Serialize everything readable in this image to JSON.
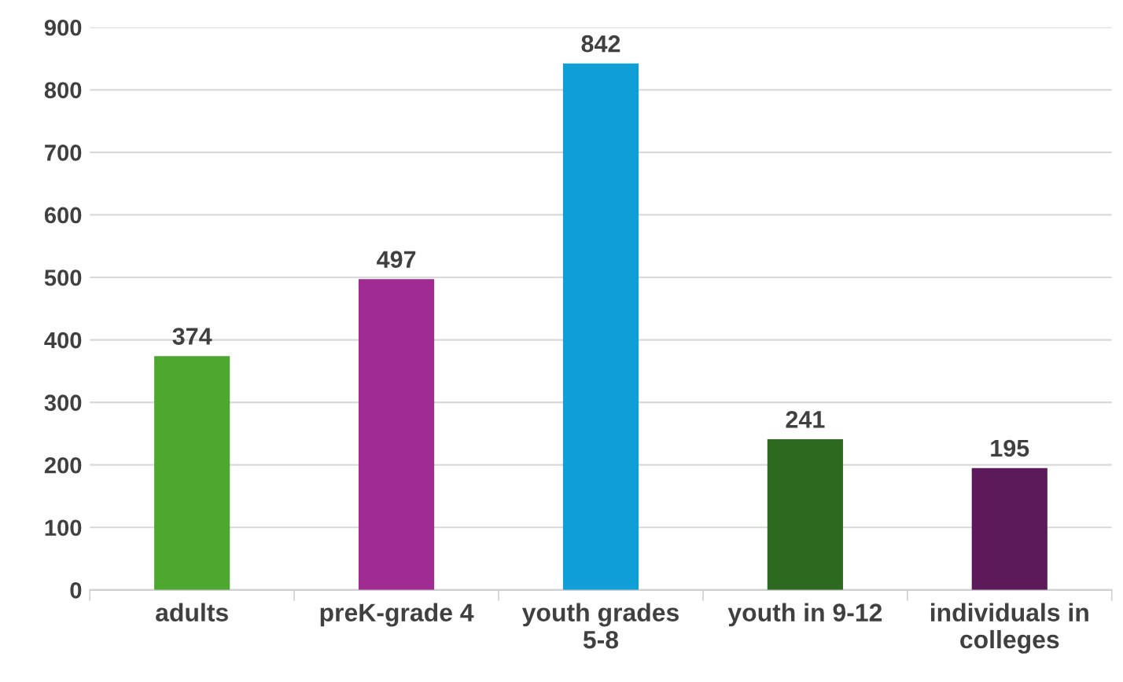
{
  "chart_data": {
    "type": "bar",
    "categories": [
      "adults",
      "preK-grade 4",
      "youth grades\n5-8",
      "youth in 9-12",
      "individuals in\ncolleges"
    ],
    "values": [
      374,
      497,
      842,
      241,
      195
    ],
    "colors": [
      "#4ea72e",
      "#a02b93",
      "#0f9ed5",
      "#2d6a1f",
      "#5c1a5a"
    ],
    "ylim": [
      0,
      900
    ],
    "yticks": [
      0,
      100,
      200,
      300,
      400,
      500,
      600,
      700,
      800,
      900
    ],
    "grid": "y",
    "data_labels": true
  }
}
